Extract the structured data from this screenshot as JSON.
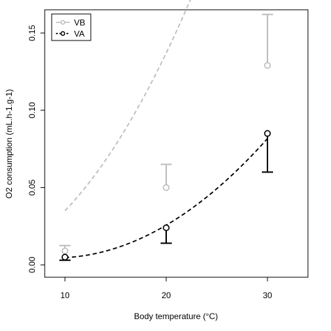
{
  "chart_data": {
    "type": "line",
    "title": "",
    "xlabel": "Body temperature (°C)",
    "ylabel": "O2 consumption (mL.h-1.g-1)",
    "xlim": [
      8,
      34
    ],
    "ylim": [
      -0.008,
      0.165
    ],
    "x_ticks": [
      10,
      20,
      30
    ],
    "x_tick_labels": [
      "10",
      "20",
      "30"
    ],
    "y_ticks": [
      0.0,
      0.05,
      0.1,
      0.15
    ],
    "y_tick_labels": [
      "0.00",
      "0.05",
      "0.10",
      "0.15"
    ],
    "grid": false,
    "legend_position": "top-left",
    "series": [
      {
        "name": "VB",
        "color": "#bdbdbd",
        "x": [
          10,
          20,
          30
        ],
        "y": [
          0.009,
          0.05,
          0.129
        ],
        "error_upper": [
          0.0125,
          0.065,
          0.162
        ],
        "fit_curve": {
          "a": 0.001,
          "b": 0.00034
        },
        "line_style": "dashed"
      },
      {
        "name": "VA",
        "color": "#000000",
        "x": [
          10,
          20,
          30
        ],
        "y": [
          0.005,
          0.024,
          0.085
        ],
        "error_lower": [
          0.003,
          0.014,
          0.06
        ],
        "fit_curve": {
          "x0": 9,
          "a": 0.0045,
          "b": 0.000175
        },
        "line_style": "dashed"
      }
    ]
  }
}
